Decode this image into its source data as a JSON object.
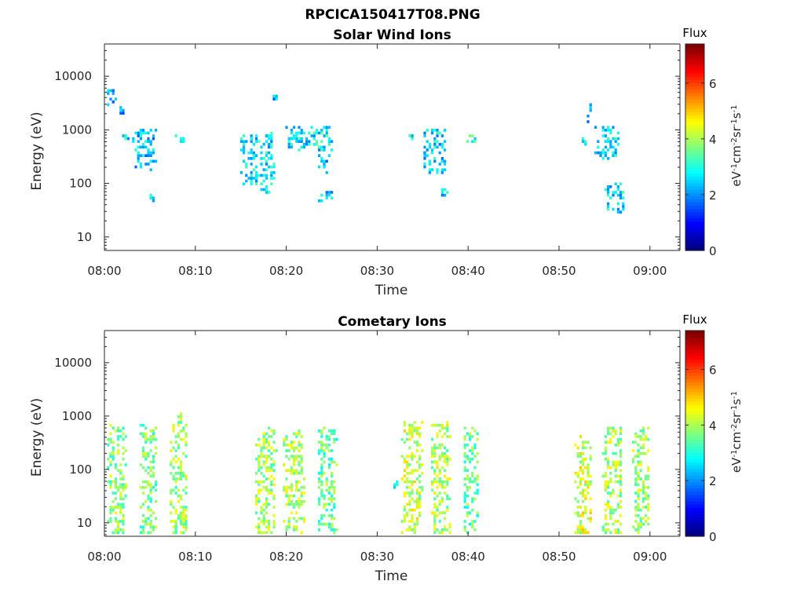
{
  "figure_title": "RPCICA150417T08.PNG",
  "colorbar": {
    "label": "eV⁻¹cm⁻²sr⁻¹s⁻¹",
    "label_html": "eV<tspan baseline-shift='super' font-size='10'>-1</tspan>cm<tspan baseline-shift='super' font-size='10'>-2</tspan>sr<tspan baseline-shift='super' font-size='10'>-1</tspan>s<tspan baseline-shift='super' font-size='10'>-1</tspan>",
    "title": "Flux",
    "ticks": [
      "0",
      "2",
      "4",
      "6"
    ],
    "range": [
      0,
      7.4
    ],
    "colormap": "jet"
  },
  "chart_data": [
    {
      "type": "heatmap",
      "title": "Solar Wind Ions",
      "xlabel": "Time",
      "ylabel": "Energy (eV)",
      "xticks": [
        "08:00",
        "08:10",
        "08:20",
        "08:30",
        "08:40",
        "08:50",
        "09:00"
      ],
      "xlim_minutes": [
        0,
        63.3
      ],
      "yticks": [
        "10",
        "100",
        "1000",
        "10000"
      ],
      "yscale": "log",
      "ylim": [
        5.6,
        40000
      ],
      "clusters": [
        {
          "t": [
            0.1,
            1.0
          ],
          "e": [
            3000,
            7000
          ],
          "v": 2.2
        },
        {
          "t": [
            1.5,
            2.0
          ],
          "e": [
            1800,
            2800
          ],
          "v": 2.0
        },
        {
          "t": [
            2.0,
            2.4
          ],
          "e": [
            600,
            900
          ],
          "v": 2.6
        },
        {
          "t": [
            3.0,
            5.5
          ],
          "e": [
            200,
            1100
          ],
          "v": 2.3
        },
        {
          "t": [
            5.0,
            5.4
          ],
          "e": [
            50,
            75
          ],
          "v": 2.6
        },
        {
          "t": [
            7.5,
            8.7
          ],
          "e": [
            600,
            850
          ],
          "v": 2.9
        },
        {
          "t": [
            15.0,
            18.5
          ],
          "e": [
            100,
            900
          ],
          "v": 2.6
        },
        {
          "t": [
            17.0,
            18.0
          ],
          "e": [
            68,
            110
          ],
          "v": 2.5
        },
        {
          "t": [
            18.5,
            19.0
          ],
          "e": [
            4000,
            4500
          ],
          "v": 2.2
        },
        {
          "t": [
            20.0,
            25.0
          ],
          "e": [
            450,
            1200
          ],
          "v": 2.7
        },
        {
          "t": [
            23.5,
            24.5
          ],
          "e": [
            150,
            450
          ],
          "v": 2.3
        },
        {
          "t": [
            23.5,
            25.0
          ],
          "e": [
            50,
            80
          ],
          "v": 2.5
        },
        {
          "t": [
            33.5,
            33.8
          ],
          "e": [
            750,
            820
          ],
          "v": 2.8
        },
        {
          "t": [
            35.0,
            37.5
          ],
          "e": [
            150,
            1100
          ],
          "v": 2.5
        },
        {
          "t": [
            37.0,
            37.5
          ],
          "e": [
            65,
            85
          ],
          "v": 2.5
        },
        {
          "t": [
            39.7,
            40.7
          ],
          "e": [
            600,
            850
          ],
          "v": 2.9
        },
        {
          "t": [
            53.0,
            53.5
          ],
          "e": [
            1500,
            3600
          ],
          "v": 2.2
        },
        {
          "t": [
            52.5,
            53.0
          ],
          "e": [
            600,
            750
          ],
          "v": 2.8
        },
        {
          "t": [
            54.0,
            56.5
          ],
          "e": [
            300,
            1200
          ],
          "v": 2.5
        },
        {
          "t": [
            55.0,
            57.0
          ],
          "e": [
            30,
            100
          ],
          "v": 2.6
        }
      ]
    },
    {
      "type": "heatmap",
      "title": "Cometary Ions",
      "xlabel": "Time",
      "ylabel": "Energy (eV)",
      "xticks": [
        "08:00",
        "08:10",
        "08:20",
        "08:30",
        "08:40",
        "08:50",
        "09:00"
      ],
      "xlim_minutes": [
        0,
        63.3
      ],
      "yticks": [
        "10",
        "100",
        "1000",
        "10000"
      ],
      "yscale": "log",
      "ylim": [
        5.6,
        40000
      ],
      "clusters": [
        {
          "t": [
            0.3,
            2.2
          ],
          "e": [
            5.6,
            700
          ],
          "v": 3.8
        },
        {
          "t": [
            3.9,
            5.5
          ],
          "e": [
            5.6,
            700
          ],
          "v": 3.6
        },
        {
          "t": [
            7.1,
            8.9
          ],
          "e": [
            5.6,
            1200
          ],
          "v": 4.0
        },
        {
          "t": [
            16.6,
            18.7
          ],
          "e": [
            5.6,
            650
          ],
          "v": 3.9
        },
        {
          "t": [
            19.6,
            21.8
          ],
          "e": [
            5.6,
            550
          ],
          "v": 4.0
        },
        {
          "t": [
            23.4,
            25.3
          ],
          "e": [
            5.6,
            650
          ],
          "v": 3.5
        },
        {
          "t": [
            31.8,
            32.1
          ],
          "e": [
            50,
            60
          ],
          "v": 3.0
        },
        {
          "t": [
            32.7,
            34.8
          ],
          "e": [
            5.6,
            800
          ],
          "v": 4.2
        },
        {
          "t": [
            35.9,
            37.8
          ],
          "e": [
            5.6,
            850
          ],
          "v": 4.0
        },
        {
          "t": [
            39.4,
            40.9
          ],
          "e": [
            5.6,
            650
          ],
          "v": 3.5
        },
        {
          "t": [
            51.7,
            53.4
          ],
          "e": [
            5.6,
            450
          ],
          "v": 4.3
        },
        {
          "t": [
            54.8,
            56.8
          ],
          "e": [
            5.6,
            650
          ],
          "v": 4.0
        },
        {
          "t": [
            58.1,
            59.8
          ],
          "e": [
            5.6,
            650
          ],
          "v": 3.9
        }
      ]
    }
  ]
}
